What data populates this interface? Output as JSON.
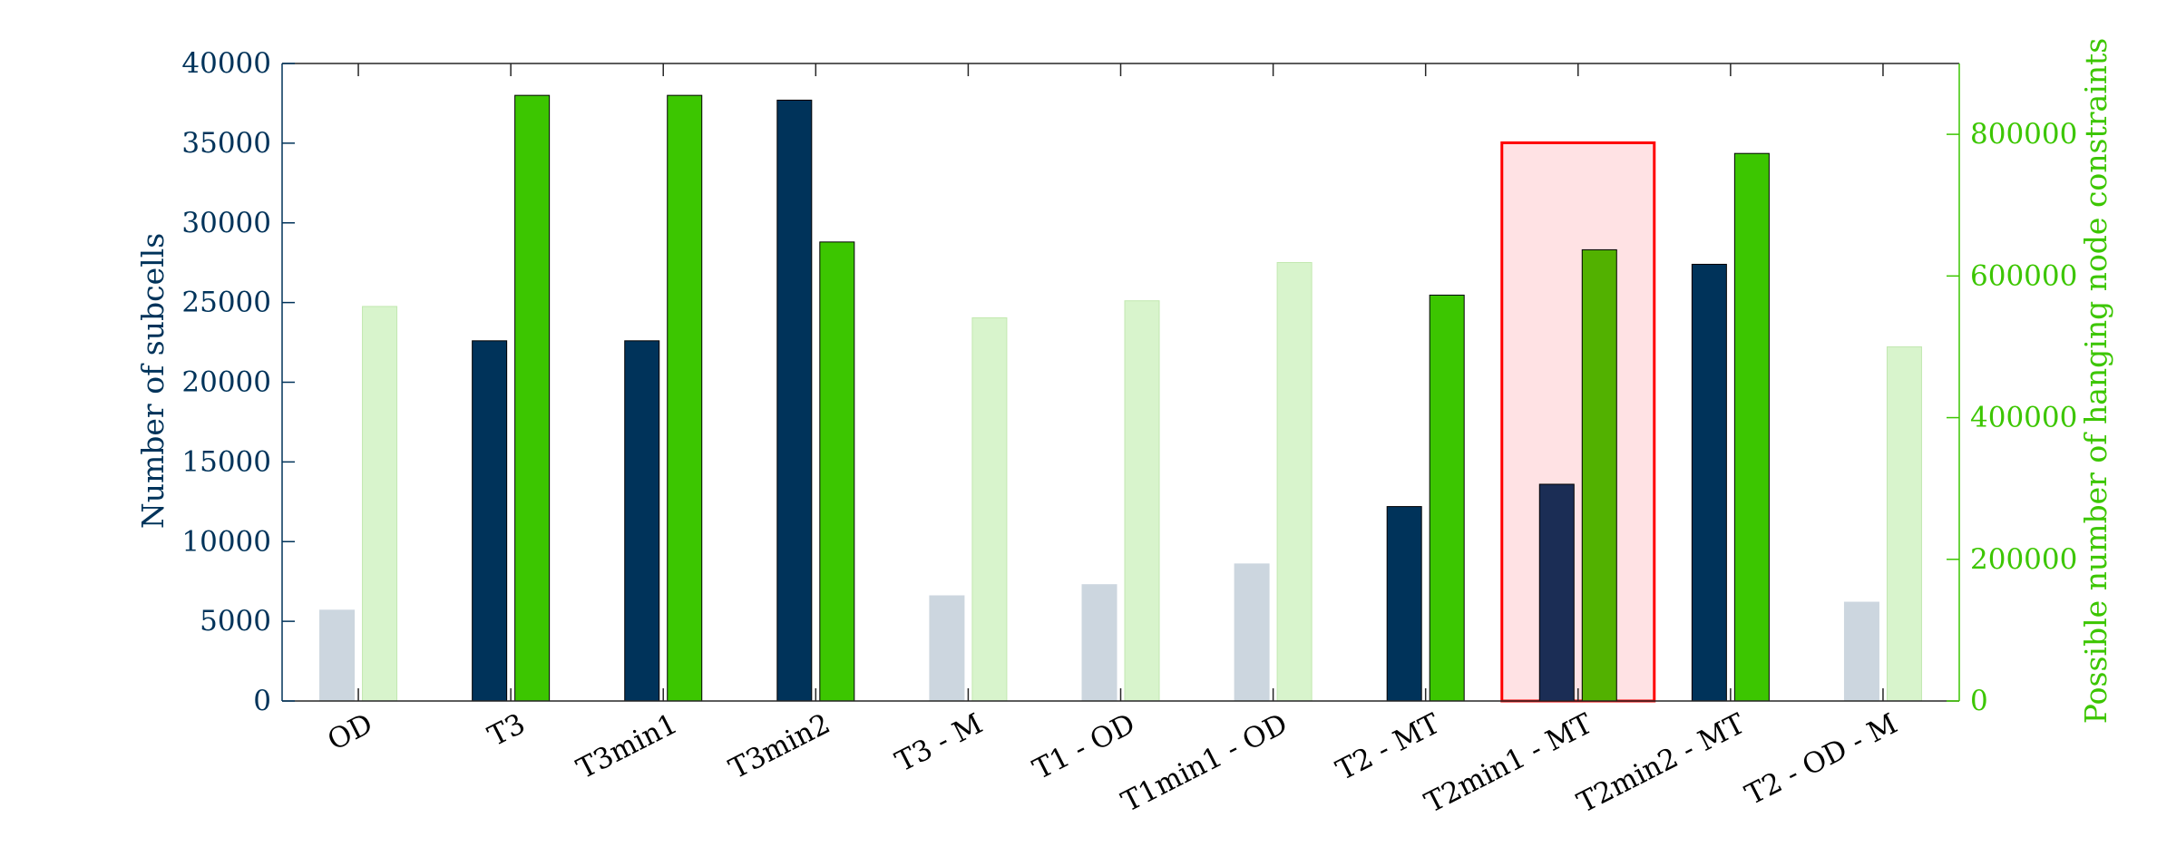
{
  "chart_data": {
    "type": "bar",
    "categories": [
      "OD",
      "T3",
      "T3min1",
      "T3min2",
      "T3 - M",
      "T1 - OD",
      "T1min1 - OD",
      "T2 - MT",
      "T2min1 - MT",
      "T2min2 - MT",
      "T2 - OD - M"
    ],
    "series": [
      {
        "name": "Number of subcells",
        "axis": "left",
        "values": [
          5700,
          22600,
          22600,
          37700,
          6600,
          7300,
          8600,
          12200,
          13600,
          27400,
          6200
        ]
      },
      {
        "name": "Possible number of hanging node constraints",
        "axis": "right",
        "values": [
          557000,
          855000,
          855000,
          648000,
          541000,
          565000,
          619000,
          573000,
          637000,
          773000,
          500000
        ]
      }
    ],
    "highlighted": [
      false,
      true,
      true,
      true,
      false,
      false,
      false,
      true,
      true,
      true,
      false
    ],
    "selected_category": "T2min1 - MT",
    "ylabel_left": "Number of subcells",
    "ylabel_right": "Possible number of hanging node constraints",
    "ylim_left": [
      0,
      40000
    ],
    "ylim_right": [
      0,
      900000
    ],
    "yticks_left": [
      "0",
      "5000",
      "10000",
      "15000",
      "20000",
      "25000",
      "30000",
      "35000",
      "40000"
    ],
    "yticks_right": [
      "0",
      "200000",
      "400000",
      "600000",
      "800000"
    ],
    "grid": false,
    "colors": {
      "left_strong": "#00335a",
      "left_faded": "#ccd6df",
      "left_selected": "#1b2d55",
      "right_strong": "#3cc600",
      "right_faded": "#d8f4cc",
      "right_selected": "#52b100",
      "left_axis": "#00335a",
      "right_axis": "#3cc600",
      "selection_fill": "#ffe2e4",
      "selection_border": "#ff0000"
    }
  }
}
